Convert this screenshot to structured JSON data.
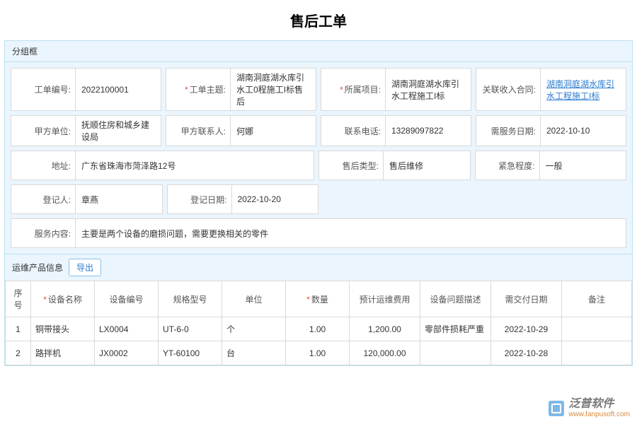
{
  "title": "售后工单",
  "group_label": "分组框",
  "colors": {
    "border": "#bcdff1",
    "panel_bg": "#eaf5fd",
    "cell_border": "#d9d9d9",
    "link": "#2a7bd0",
    "required": "#e74c3c"
  },
  "form": {
    "order_no": {
      "label": "工单编号:",
      "value": "2022100001"
    },
    "subject": {
      "label": "工单主题:",
      "value": "湖南洞庭湖水库引水工0程施工I标售后",
      "required": true
    },
    "project": {
      "label": "所属项目:",
      "value": "湖南洞庭湖水库引水工程施工I标",
      "required": true
    },
    "income_contract": {
      "label": "关联收入合同:",
      "value": "湖南洞庭湖水库引水工程施工I标"
    },
    "party_a": {
      "label": "甲方单位:",
      "value": "抚顺住房和城乡建设局"
    },
    "party_a_contact": {
      "label": "甲方联系人:",
      "value": "何娜"
    },
    "phone": {
      "label": "联系电话:",
      "value": "13289097822"
    },
    "service_date": {
      "label": "需服务日期:",
      "value": "2022-10-10"
    },
    "address": {
      "label": "地址:",
      "value": "广东省珠海市菏泽路12号"
    },
    "service_type": {
      "label": "售后类型:",
      "value": "售后维修"
    },
    "urgency": {
      "label": "紧急程度:",
      "value": "一般"
    },
    "registrar": {
      "label": "登记人:",
      "value": "章燕"
    },
    "reg_date": {
      "label": "登记日期:",
      "value": "2022-10-20"
    },
    "content": {
      "label": "服务内容:",
      "value": "主要是两个设备的磨损问题，需要更换相关的零件"
    }
  },
  "product_section": {
    "title": "运维产品信息",
    "export_label": "导出"
  },
  "table": {
    "columns": {
      "seq": "序号",
      "device_name": "设备名称",
      "device_code": "设备编号",
      "spec": "规格型号",
      "unit": "单位",
      "qty": "数量",
      "est_fee": "预计运维费用",
      "issue_desc": "设备问题描述",
      "due_date": "需交付日期",
      "remark": "备注"
    },
    "required": {
      "device_name": true,
      "qty": true
    },
    "col_widths": [
      "36px",
      "90px",
      "90px",
      "90px",
      "90px",
      "90px",
      "100px",
      "100px",
      "100px",
      ""
    ],
    "rows": [
      {
        "seq": "1",
        "device_name": "铜带接头",
        "device_code": "LX0004",
        "spec": "UT-6-0",
        "unit": "个",
        "qty": "1.00",
        "est_fee": "1,200.00",
        "issue_desc": "零部件损耗严重",
        "due_date": "2022-10-29",
        "remark": ""
      },
      {
        "seq": "2",
        "device_name": "路拌机",
        "device_code": "JX0002",
        "spec": "YT-60100",
        "unit": "台",
        "qty": "1.00",
        "est_fee": "120,000.00",
        "issue_desc": "",
        "due_date": "2022-10-28",
        "remark": ""
      }
    ]
  },
  "watermark": {
    "name": "泛普软件",
    "url": "www.fanpusoft.com"
  }
}
